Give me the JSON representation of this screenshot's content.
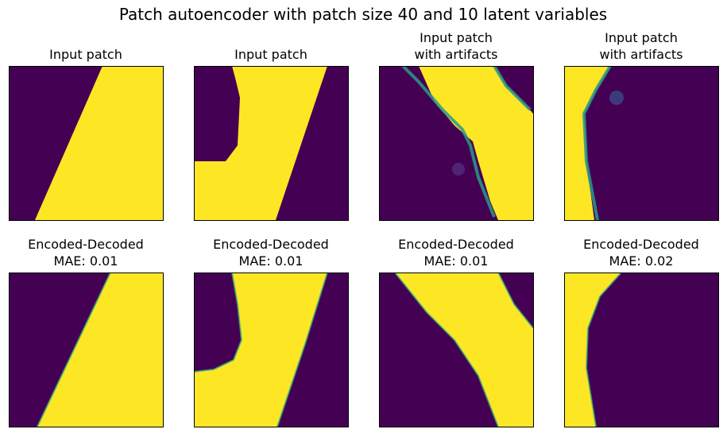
{
  "title": "Patch autoencoder with patch size 40 and 10 latent variables",
  "panels": [
    {
      "title": [
        "Input patch"
      ]
    },
    {
      "title": [
        "Input patch"
      ]
    },
    {
      "title": [
        "Input patch",
        "with artifacts"
      ]
    },
    {
      "title": [
        "Input patch",
        "with artifacts"
      ]
    },
    {
      "title": [
        "Encoded-Decoded",
        "MAE: 0.01"
      ]
    },
    {
      "title": [
        "Encoded-Decoded",
        "MAE: 0.01"
      ]
    },
    {
      "title": [
        "Encoded-Decoded",
        "MAE: 0.01"
      ]
    },
    {
      "title": [
        "Encoded-Decoded",
        "MAE: 0.02"
      ]
    }
  ]
}
